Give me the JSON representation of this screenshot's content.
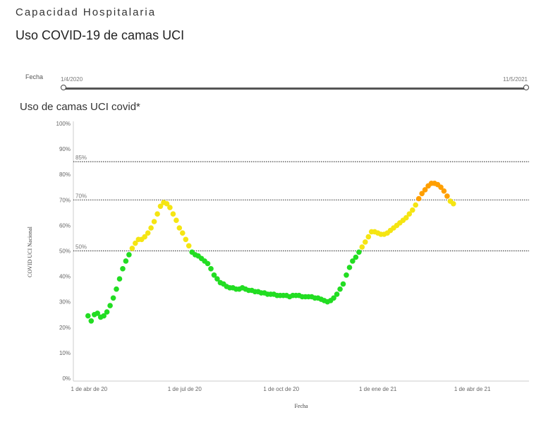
{
  "header": {
    "section_title": "Capacidad Hospitalaria",
    "subtitle": "Uso COVID-19 de camas UCI"
  },
  "date_filter": {
    "label": "Fecha",
    "start": "1/4/2020",
    "end": "11/5/2021"
  },
  "chart_data": {
    "type": "scatter",
    "title": "Uso de camas UCI covid*",
    "xlabel": "Fecha",
    "ylabel": "COVID UCI Nacional",
    "ylim": [
      0,
      100
    ],
    "y_ticks": [
      "0%",
      "10%",
      "20%",
      "30%",
      "40%",
      "50%",
      "60%",
      "70%",
      "80%",
      "90%",
      "100%"
    ],
    "x_ticks": [
      {
        "date": "2020-04-01",
        "label": "1 de abr de 20"
      },
      {
        "date": "2020-07-01",
        "label": "1 de jul de 20"
      },
      {
        "date": "2020-10-01",
        "label": "1 de oct de 20"
      },
      {
        "date": "2021-01-01",
        "label": "1 de ene de 21"
      },
      {
        "date": "2021-04-01",
        "label": "1 de abr de 21"
      }
    ],
    "xlim": [
      "2020-03-17",
      "2021-05-25"
    ],
    "reference_lines": [
      {
        "value": 50,
        "label": "50%"
      },
      {
        "value": 70,
        "label": "70%"
      },
      {
        "value": 85,
        "label": "85%"
      }
    ],
    "color_scale": {
      "below_50": "#22dd22",
      "50_to_70": "#f5e512",
      "above_70": "#ff9f00"
    },
    "grid": false,
    "points": [
      [
        "2020-03-31",
        24.5
      ],
      [
        "2020-04-03",
        22.5
      ],
      [
        "2020-04-06",
        25.0
      ],
      [
        "2020-04-09",
        25.5
      ],
      [
        "2020-04-12",
        24.0
      ],
      [
        "2020-04-15",
        24.5
      ],
      [
        "2020-04-18",
        26.0
      ],
      [
        "2020-04-21",
        28.5
      ],
      [
        "2020-04-24",
        31.5
      ],
      [
        "2020-04-27",
        35.0
      ],
      [
        "2020-04-30",
        39.0
      ],
      [
        "2020-05-03",
        43.0
      ],
      [
        "2020-05-06",
        46.0
      ],
      [
        "2020-05-09",
        48.5
      ],
      [
        "2020-05-12",
        51.0
      ],
      [
        "2020-05-15",
        53.0
      ],
      [
        "2020-05-18",
        54.5
      ],
      [
        "2020-05-21",
        54.5
      ],
      [
        "2020-05-24",
        55.5
      ],
      [
        "2020-05-27",
        57.0
      ],
      [
        "2020-05-30",
        59.0
      ],
      [
        "2020-06-02",
        61.5
      ],
      [
        "2020-06-05",
        64.5
      ],
      [
        "2020-06-08",
        67.5
      ],
      [
        "2020-06-11",
        69.0
      ],
      [
        "2020-06-14",
        68.5
      ],
      [
        "2020-06-17",
        67.0
      ],
      [
        "2020-06-20",
        64.5
      ],
      [
        "2020-06-23",
        62.0
      ],
      [
        "2020-06-26",
        59.0
      ],
      [
        "2020-06-29",
        57.0
      ],
      [
        "2020-07-02",
        54.5
      ],
      [
        "2020-07-05",
        52.0
      ],
      [
        "2020-07-08",
        49.5
      ],
      [
        "2020-07-11",
        48.5
      ],
      [
        "2020-07-14",
        48.0
      ],
      [
        "2020-07-17",
        47.0
      ],
      [
        "2020-07-20",
        46.0
      ],
      [
        "2020-07-23",
        45.0
      ],
      [
        "2020-07-26",
        43.0
      ],
      [
        "2020-07-29",
        40.5
      ],
      [
        "2020-08-01",
        39.0
      ],
      [
        "2020-08-04",
        37.5
      ],
      [
        "2020-08-07",
        37.0
      ],
      [
        "2020-08-10",
        36.0
      ],
      [
        "2020-08-13",
        35.5
      ],
      [
        "2020-08-16",
        35.5
      ],
      [
        "2020-08-19",
        35.0
      ],
      [
        "2020-08-22",
        35.0
      ],
      [
        "2020-08-25",
        35.5
      ],
      [
        "2020-08-28",
        35.0
      ],
      [
        "2020-08-31",
        34.5
      ],
      [
        "2020-09-03",
        34.5
      ],
      [
        "2020-09-06",
        34.0
      ],
      [
        "2020-09-09",
        34.0
      ],
      [
        "2020-09-12",
        33.5
      ],
      [
        "2020-09-15",
        33.5
      ],
      [
        "2020-09-18",
        33.0
      ],
      [
        "2020-09-21",
        33.0
      ],
      [
        "2020-09-24",
        33.0
      ],
      [
        "2020-09-27",
        32.5
      ],
      [
        "2020-09-30",
        32.5
      ],
      [
        "2020-10-03",
        32.5
      ],
      [
        "2020-10-06",
        32.5
      ],
      [
        "2020-10-09",
        32.0
      ],
      [
        "2020-10-12",
        32.5
      ],
      [
        "2020-10-15",
        32.5
      ],
      [
        "2020-10-18",
        32.5
      ],
      [
        "2020-10-21",
        32.0
      ],
      [
        "2020-10-24",
        32.0
      ],
      [
        "2020-10-27",
        32.0
      ],
      [
        "2020-10-30",
        32.0
      ],
      [
        "2020-11-02",
        31.5
      ],
      [
        "2020-11-05",
        31.5
      ],
      [
        "2020-11-08",
        31.0
      ],
      [
        "2020-11-11",
        30.5
      ],
      [
        "2020-11-14",
        30.0
      ],
      [
        "2020-11-17",
        30.5
      ],
      [
        "2020-11-20",
        31.5
      ],
      [
        "2020-11-23",
        33.0
      ],
      [
        "2020-11-26",
        35.0
      ],
      [
        "2020-11-29",
        37.0
      ],
      [
        "2020-12-02",
        40.5
      ],
      [
        "2020-12-05",
        43.5
      ],
      [
        "2020-12-08",
        46.0
      ],
      [
        "2020-12-11",
        47.5
      ],
      [
        "2020-12-14",
        49.5
      ],
      [
        "2020-12-17",
        51.5
      ],
      [
        "2020-12-20",
        53.5
      ],
      [
        "2020-12-23",
        55.5
      ],
      [
        "2020-12-26",
        57.5
      ],
      [
        "2020-12-29",
        57.5
      ],
      [
        "2021-01-01",
        57.0
      ],
      [
        "2021-01-04",
        56.5
      ],
      [
        "2021-01-07",
        56.5
      ],
      [
        "2021-01-10",
        57.0
      ],
      [
        "2021-01-13",
        58.0
      ],
      [
        "2021-01-16",
        59.0
      ],
      [
        "2021-01-19",
        60.0
      ],
      [
        "2021-01-22",
        61.0
      ],
      [
        "2021-01-25",
        62.0
      ],
      [
        "2021-01-28",
        63.0
      ],
      [
        "2021-01-31",
        64.5
      ],
      [
        "2021-02-03",
        66.0
      ],
      [
        "2021-02-06",
        68.0
      ],
      [
        "2021-02-09",
        70.5
      ],
      [
        "2021-02-12",
        72.5
      ],
      [
        "2021-02-15",
        74.0
      ],
      [
        "2021-02-18",
        75.5
      ],
      [
        "2021-02-21",
        76.5
      ],
      [
        "2021-02-24",
        76.5
      ],
      [
        "2021-02-27",
        76.0
      ],
      [
        "2021-03-02",
        75.0
      ],
      [
        "2021-03-05",
        73.5
      ],
      [
        "2021-03-08",
        71.5
      ],
      [
        "2021-03-11",
        69.5
      ],
      [
        "2021-03-14",
        68.5
      ]
    ]
  }
}
